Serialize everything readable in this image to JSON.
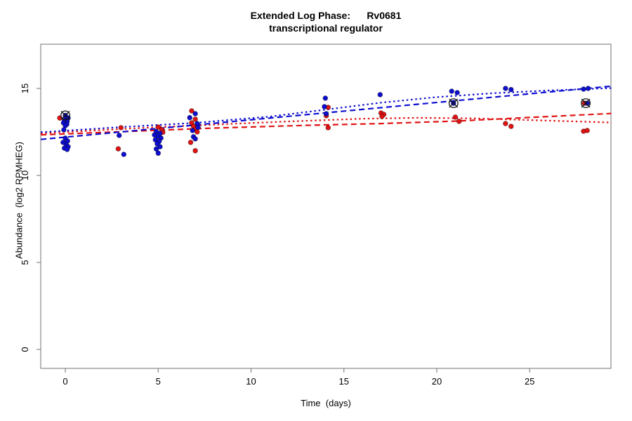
{
  "title": {
    "line1": "Extended Log Phase:      Rv0681",
    "line2": "transcriptional regulator"
  },
  "colors": {
    "blue": "#0d0dd0",
    "red": "#e01212",
    "axis": "#707070",
    "flag": "#111111",
    "background": "#ffffff"
  },
  "chart_data": {
    "type": "scatter",
    "title": "Extended Log Phase: Rv0681 transcriptional regulator",
    "xlabel": "Time  (days)",
    "ylabel": "Abundance  (log2 RPMHEG)",
    "xlim": [
      -1.32,
      29.4
    ],
    "ylim": [
      -1.1,
      17.5
    ],
    "x_ticks": [
      0,
      5,
      10,
      15,
      20,
      25
    ],
    "y_ticks": [
      0,
      5,
      10,
      15
    ],
    "grid": false,
    "legend": "none",
    "series": [
      {
        "name": "condition-red",
        "color": "#e01212",
        "points": [
          [
            -0.3,
            13.3
          ],
          [
            3.0,
            12.74
          ],
          [
            2.85,
            11.53
          ],
          [
            5.0,
            12.78
          ],
          [
            5.2,
            12.62
          ],
          [
            5.25,
            12.48
          ],
          [
            6.8,
            13.71
          ],
          [
            7.0,
            13.23
          ],
          [
            6.8,
            13.02
          ],
          [
            6.9,
            12.82
          ],
          [
            7.0,
            12.66
          ],
          [
            7.1,
            12.5
          ],
          [
            6.75,
            11.9
          ],
          [
            7.0,
            11.42
          ],
          [
            14.15,
            13.91
          ],
          [
            14.05,
            13.43
          ],
          [
            14.15,
            12.74
          ],
          [
            17.0,
            13.59
          ],
          [
            17.15,
            13.51
          ],
          [
            17.05,
            13.39
          ],
          [
            21.0,
            13.35
          ],
          [
            21.2,
            13.11
          ],
          [
            23.7,
            12.98
          ],
          [
            24.0,
            12.82
          ],
          [
            27.95,
            14.15
          ],
          [
            27.9,
            12.54
          ],
          [
            28.1,
            12.58
          ]
        ]
      },
      {
        "name": "condition-blue",
        "color": "#0d0dd0",
        "points": [
          [
            0.0,
            13.45
          ],
          [
            0.02,
            13.38
          ],
          [
            0.15,
            13.3
          ],
          [
            -0.05,
            13.15
          ],
          [
            0.1,
            13.1
          ],
          [
            -0.1,
            13.02
          ],
          [
            0.08,
            12.94
          ],
          [
            0.0,
            12.86
          ],
          [
            -0.08,
            12.62
          ],
          [
            0.0,
            12.14
          ],
          [
            0.12,
            11.98
          ],
          [
            -0.12,
            11.9
          ],
          [
            0.05,
            11.77
          ],
          [
            0.15,
            11.65
          ],
          [
            -0.05,
            11.57
          ],
          [
            0.1,
            11.49
          ],
          [
            2.9,
            12.3
          ],
          [
            3.15,
            11.21
          ],
          [
            4.9,
            12.52
          ],
          [
            5.1,
            12.42
          ],
          [
            4.8,
            12.33
          ],
          [
            5.0,
            12.25
          ],
          [
            5.15,
            12.15
          ],
          [
            4.85,
            12.05
          ],
          [
            5.05,
            11.95
          ],
          [
            4.95,
            11.82
          ],
          [
            5.1,
            11.65
          ],
          [
            4.9,
            11.52
          ],
          [
            5.0,
            11.28
          ],
          [
            7.0,
            13.55
          ],
          [
            6.7,
            13.32
          ],
          [
            7.1,
            12.98
          ],
          [
            7.15,
            12.76
          ],
          [
            6.85,
            12.58
          ],
          [
            6.9,
            12.22
          ],
          [
            7.0,
            12.1
          ],
          [
            14.0,
            14.44
          ],
          [
            13.95,
            13.95
          ],
          [
            14.05,
            13.55
          ],
          [
            16.95,
            14.64
          ],
          [
            20.8,
            14.84
          ],
          [
            21.1,
            14.76
          ],
          [
            20.9,
            14.15
          ],
          [
            23.7,
            15.0
          ],
          [
            24.0,
            14.93
          ],
          [
            27.9,
            14.96
          ],
          [
            28.15,
            15.0
          ],
          [
            28.1,
            14.15
          ]
        ]
      }
    ],
    "flagged_points": [
      [
        0.0,
        13.45
      ],
      [
        20.9,
        14.15
      ],
      [
        28.02,
        14.15
      ]
    ],
    "trend_lines": [
      {
        "name": "red-linear-fit",
        "color": "#e01212",
        "style": "dashed",
        "points": [
          [
            -1.32,
            12.33
          ],
          [
            8,
            12.72
          ],
          [
            13,
            12.88
          ],
          [
            17,
            12.98
          ],
          [
            21,
            13.12
          ],
          [
            25,
            13.33
          ],
          [
            29.4,
            13.56
          ]
        ]
      },
      {
        "name": "red-smooth-fit",
        "color": "#e01212",
        "style": "dotted",
        "points": [
          [
            -1.32,
            12.42
          ],
          [
            4,
            12.72
          ],
          [
            8,
            12.92
          ],
          [
            12,
            13.1
          ],
          [
            16,
            13.26
          ],
          [
            19,
            13.31
          ],
          [
            22,
            13.28
          ],
          [
            25,
            13.18
          ],
          [
            29.4,
            13.04
          ]
        ]
      },
      {
        "name": "blue-linear-fit",
        "color": "#0d0dd0",
        "style": "dashed",
        "points": [
          [
            -1.32,
            12.07
          ],
          [
            29.4,
            15.13
          ]
        ]
      },
      {
        "name": "blue-smooth-fit",
        "color": "#0d0dd0",
        "style": "dotted",
        "points": [
          [
            -1.32,
            12.48
          ],
          [
            3,
            12.78
          ],
          [
            7,
            13.02
          ],
          [
            11,
            13.38
          ],
          [
            14,
            13.78
          ],
          [
            17,
            14.18
          ],
          [
            20,
            14.5
          ],
          [
            23,
            14.72
          ],
          [
            26,
            14.88
          ],
          [
            29.4,
            15.02
          ]
        ]
      }
    ]
  }
}
